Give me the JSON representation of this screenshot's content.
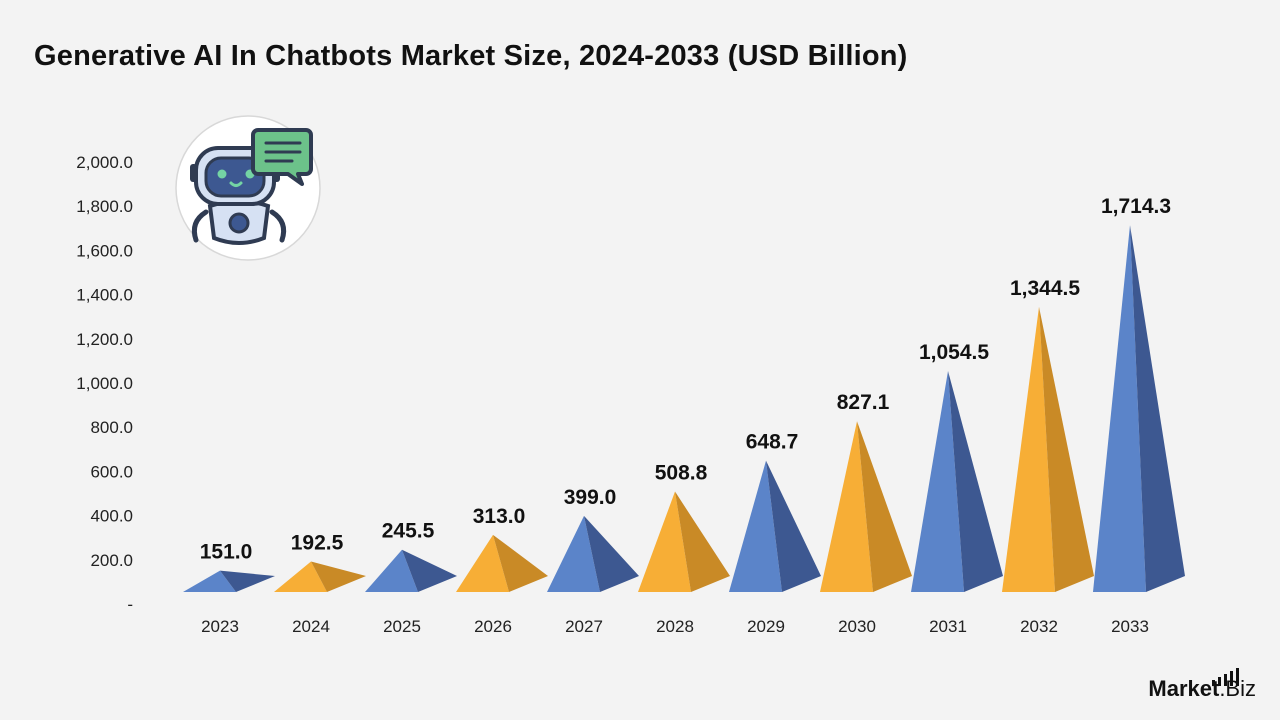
{
  "title": "Generative AI In Chatbots Market Size, 2024-2033 (USD Billion)",
  "brand": {
    "name_bold": "Market",
    "name_light": ".Biz"
  },
  "colors": {
    "blue": "#5b84c9",
    "blue_dark": "#3d5891",
    "orange": "#f7ae36",
    "orange_dark": "#c98a26"
  },
  "chart_data": {
    "type": "bar",
    "title": "Generative AI In Chatbots Market Size, 2024-2033 (USD Billion)",
    "categories": [
      "2023",
      "2024",
      "2025",
      "2026",
      "2027",
      "2028",
      "2029",
      "2030",
      "2031",
      "2032",
      "2033"
    ],
    "values": [
      151.0,
      192.5,
      245.5,
      313.0,
      399.0,
      508.8,
      648.7,
      827.1,
      1054.5,
      1344.5,
      1714.3
    ],
    "value_labels": [
      "151.0",
      "192.5",
      "245.5",
      "313.0",
      "399.0",
      "508.8",
      "648.7",
      "827.1",
      "1,054.5",
      "1,344.5",
      "1,714.3"
    ],
    "bar_colors": [
      "blue",
      "orange",
      "blue",
      "orange",
      "blue",
      "orange",
      "blue",
      "orange",
      "blue",
      "orange",
      "blue"
    ],
    "y_ticks": [
      0,
      200,
      400,
      600,
      800,
      1000,
      1200,
      1400,
      1600,
      1800,
      2000
    ],
    "y_tick_labels": [
      "-",
      "200.0",
      "400.0",
      "600.0",
      "800.0",
      "1,000.0",
      "1,200.0",
      "1,400.0",
      "1,600.0",
      "1,800.0",
      "2,000.0"
    ],
    "ylim": [
      0,
      2000
    ],
    "grid": false,
    "shape": "pyramid"
  }
}
